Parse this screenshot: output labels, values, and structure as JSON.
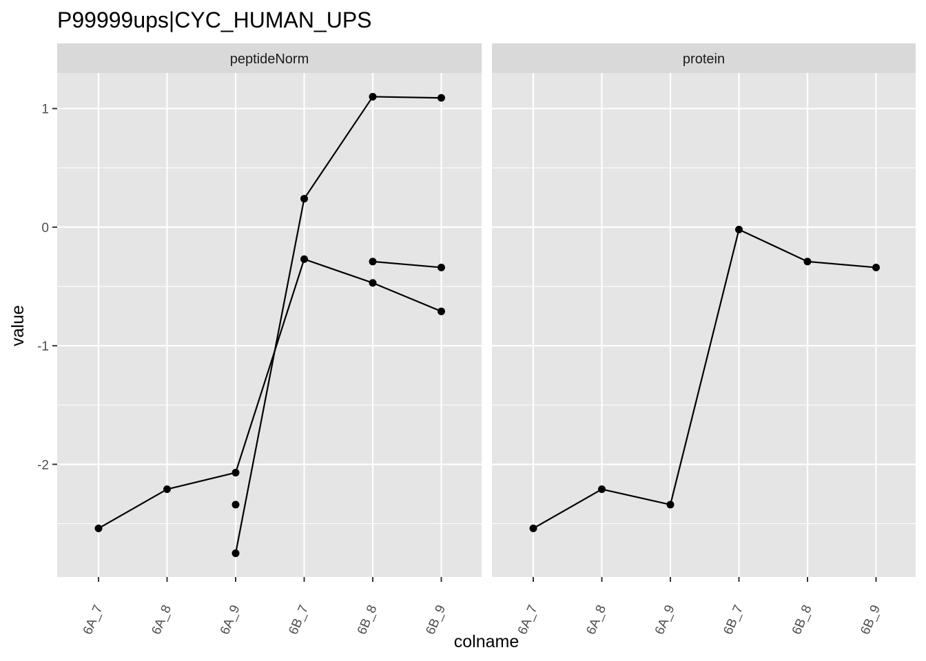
{
  "chart_data": {
    "type": "line",
    "title": "P99999ups|CYC_HUMAN_UPS",
    "xlabel": "colname",
    "ylabel": "value",
    "categories": [
      "6A_7",
      "6A_8",
      "6A_9",
      "6B_7",
      "6B_8",
      "6B_9"
    ],
    "ylim": [
      -2.95,
      1.3
    ],
    "yticks": [
      -2,
      -1,
      0,
      1
    ],
    "grid": true,
    "colors": {
      "panel_bg": "#e5e5e5",
      "strip_bg": "#d9d9d9",
      "grid": "#ffffff",
      "line": "#000000",
      "point": "#000000",
      "tick": "#4d4d4d"
    },
    "panels": [
      {
        "name": "peptideNorm",
        "series": [
          {
            "values": [
              -2.54,
              -2.21,
              -2.07,
              -0.27,
              -0.47,
              -0.71
            ]
          },
          {
            "values": [
              null,
              null,
              -2.75,
              0.24,
              1.1,
              1.09
            ]
          },
          {
            "values": [
              null,
              null,
              -2.34,
              null,
              -0.29,
              -0.34
            ]
          }
        ]
      },
      {
        "name": "protein",
        "series": [
          {
            "values": [
              -2.54,
              -2.21,
              -2.34,
              -0.02,
              -0.29,
              -0.34
            ]
          }
        ]
      }
    ]
  }
}
